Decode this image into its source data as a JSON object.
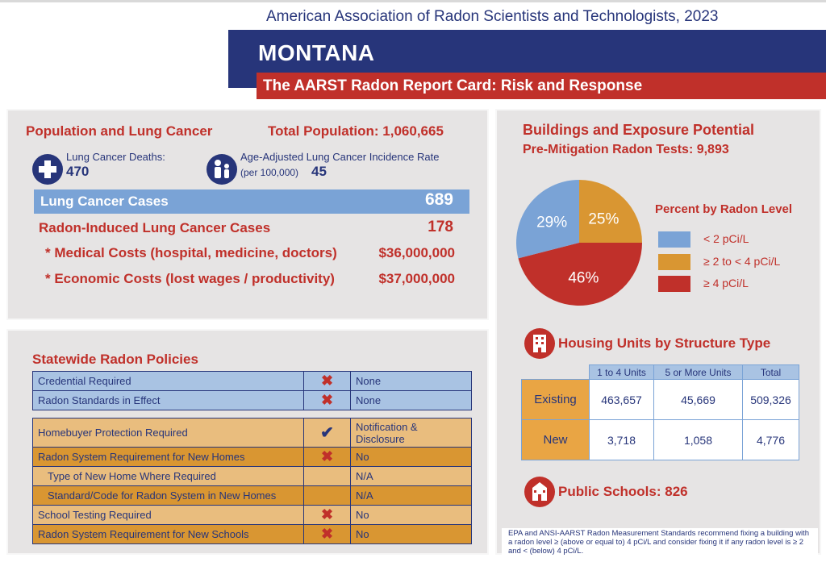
{
  "header": {
    "org": "American Association of Radon Scientists and Technologists, 2023",
    "state": "MONTANA",
    "subtitle": "The AARST Radon Report Card: Risk and Response"
  },
  "population": {
    "title": "Population and Lung Cancer",
    "total_label": "Total Population: 1,060,665",
    "deaths_label": "Lung Cancer Deaths:",
    "deaths_value": "470",
    "incidence_label": "Age-Adjusted Lung Cancer Incidence Rate",
    "incidence_sub": "(per 100,000)",
    "incidence_value": "45",
    "cases_label": "Lung Cancer Cases",
    "cases_value": "689",
    "radon_cases_label": "Radon-Induced Lung Cancer Cases",
    "radon_cases_value": "178",
    "medical_label": "* Medical Costs (hospital, medicine, doctors)",
    "medical_value": "$36,000,000",
    "economic_label": "* Economic Costs (lost wages / productivity)",
    "economic_value": "$37,000,000"
  },
  "policies": {
    "title": "Statewide Radon Policies",
    "rows": [
      {
        "label": "Credential Required",
        "mark": "✖",
        "value": "None"
      },
      {
        "label": "Radon Standards in Effect",
        "mark": "✖",
        "value": "None"
      },
      {
        "label": "Homebuyer Protection Required",
        "mark": "✔",
        "value": "Notification & Disclosure"
      },
      {
        "label": "Radon System Requirement for New Homes",
        "mark": "✖",
        "value": "No"
      },
      {
        "label": "Type of New Home Where Required",
        "mark": "",
        "value": "N/A"
      },
      {
        "label": "Standard/Code for Radon System in New Homes",
        "mark": "",
        "value": "N/A"
      },
      {
        "label": "School Testing Required",
        "mark": "✖",
        "value": "No"
      },
      {
        "label": "Radon System Requirement for New Schools",
        "mark": "✖",
        "value": "No"
      }
    ]
  },
  "buildings": {
    "title": "Buildings and Exposure Potential",
    "tests_label": "Pre-Mitigation Radon Tests: 9,893",
    "legend_title": "Percent by Radon Level",
    "housing_title": "Housing Units by Structure Type",
    "schools_label": "Public Schools: 826",
    "note": "EPA and ANSI-AARST Radon Measurement Standards recommend fixing a building with a radon level ≥ (above or equal to) 4 pCi/L and consider fixing it if any radon level is ≥ 2 and < (below) 4 pCi/L."
  },
  "chart_data": {
    "type": "pie",
    "title": "Percent by Radon Level",
    "labels": [
      "< 2 pCi/L",
      "≥ 2 to < 4 pCi/L",
      "≥ 4 pCi/L"
    ],
    "values": [
      29,
      25,
      46
    ],
    "value_labels": [
      "29%",
      "25%",
      "46%"
    ],
    "colors": [
      "#7aa3d6",
      "#d99632",
      "#c0302a"
    ],
    "legend": "right"
  },
  "housing": {
    "columns": [
      "1 to 4 Units",
      "5 or More Units",
      "Total"
    ],
    "rows": [
      {
        "label": "Existing",
        "values": [
          "463,657",
          "45,669",
          "509,326"
        ]
      },
      {
        "label": "New",
        "values": [
          "3,718",
          "1,058",
          "4,776"
        ]
      }
    ]
  },
  "icons": [
    "plus-medical-icon",
    "people-icon",
    "building-icon",
    "school-icon"
  ]
}
